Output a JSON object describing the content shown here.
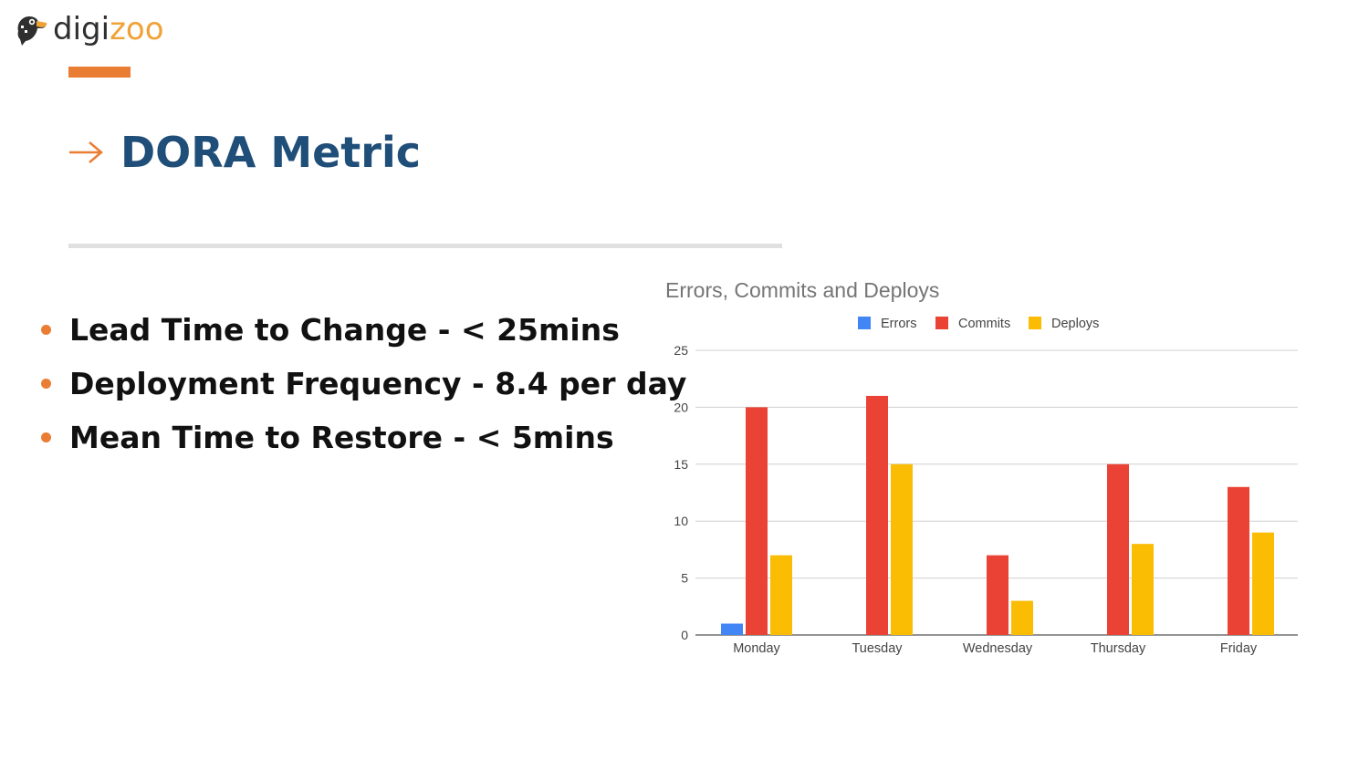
{
  "brand": {
    "text_dark": "digi",
    "text_accent": "zoo",
    "color_dark": "#2f2f2f",
    "color_accent": "#f0a237",
    "icon": "toucan-bird-icon"
  },
  "slide": {
    "title": "DORA Metric",
    "title_icon": "right-arrow-icon",
    "accent_color": "#e97d33",
    "title_color": "#1f4e79",
    "bullets": [
      "Lead Time to Change - < 25mins",
      "Deployment Frequency - 8.4 per day",
      "Mean Time to Restore - < 5mins"
    ]
  },
  "chart_data": {
    "type": "bar",
    "title": "Errors, Commits and Deploys",
    "xlabel": "",
    "ylabel": "",
    "categories": [
      "Monday",
      "Tuesday",
      "Wednesday",
      "Thursday",
      "Friday"
    ],
    "series": [
      {
        "name": "Errors",
        "color": "#4285f4",
        "values": [
          1,
          0,
          0,
          0,
          0
        ]
      },
      {
        "name": "Commits",
        "color": "#ea4335",
        "values": [
          20,
          21,
          7,
          15,
          13
        ]
      },
      {
        "name": "Deploys",
        "color": "#fbbc04",
        "values": [
          7,
          15,
          3,
          8,
          9
        ]
      }
    ],
    "ylim": [
      0,
      25
    ],
    "yticks": [
      0,
      5,
      10,
      15,
      20,
      25
    ],
    "grid": true,
    "legend_position": "top"
  }
}
